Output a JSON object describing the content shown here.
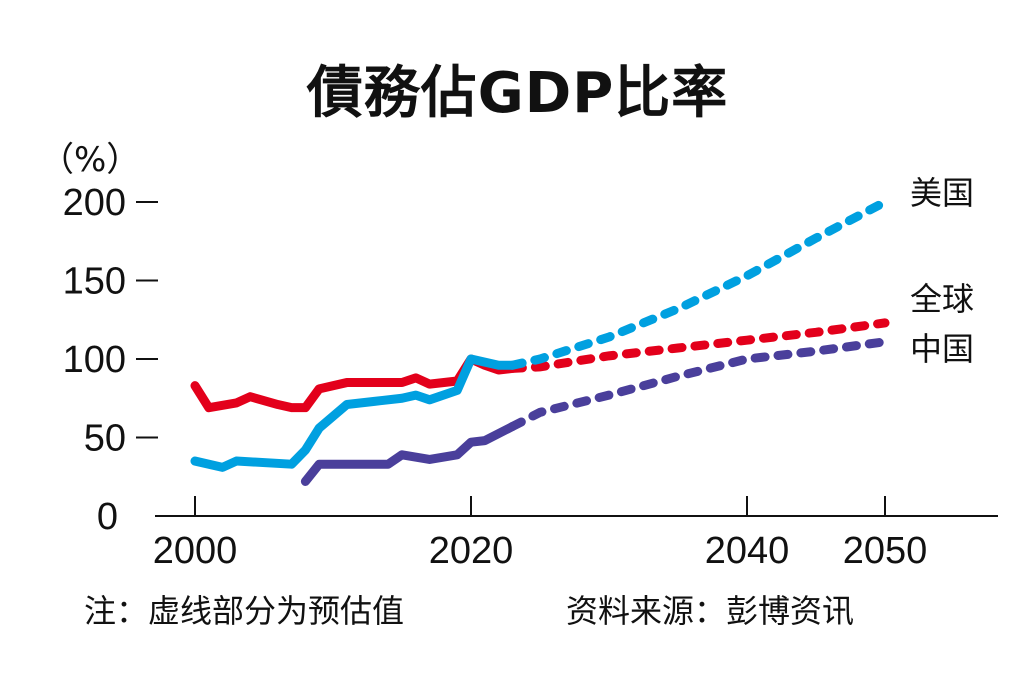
{
  "chart_data": {
    "type": "line",
    "title": "債務佔GDP比率",
    "ylabel": "（%）",
    "xlabel": "",
    "xlim": [
      1997,
      2058
    ],
    "ylim": [
      0,
      200
    ],
    "x_ticks": [
      2000,
      2020,
      2040,
      2050
    ],
    "y_ticks": [
      0,
      50,
      100,
      150,
      200
    ],
    "grid": false,
    "series": [
      {
        "name": "全球",
        "color": "#e3001b",
        "actual": [
          [
            2000,
            83
          ],
          [
            2001,
            69
          ],
          [
            2003,
            72
          ],
          [
            2004,
            76
          ],
          [
            2006,
            71
          ],
          [
            2007,
            69
          ],
          [
            2008,
            69
          ],
          [
            2009,
            81
          ],
          [
            2011,
            85
          ],
          [
            2015,
            85
          ],
          [
            2016,
            88
          ],
          [
            2017,
            84
          ],
          [
            2019,
            86
          ],
          [
            2020,
            100
          ],
          [
            2021,
            96
          ],
          [
            2022,
            93
          ],
          [
            2023,
            94
          ]
        ],
        "projected": [
          [
            2023,
            94
          ],
          [
            2025,
            95
          ],
          [
            2030,
            102
          ],
          [
            2035,
            107
          ],
          [
            2040,
            112
          ],
          [
            2045,
            117
          ],
          [
            2050,
            123
          ]
        ]
      },
      {
        "name": "美国",
        "color": "#00a0e0",
        "actual": [
          [
            2000,
            35
          ],
          [
            2002,
            31
          ],
          [
            2003,
            35
          ],
          [
            2007,
            33
          ],
          [
            2008,
            42
          ],
          [
            2009,
            56
          ],
          [
            2011,
            71
          ],
          [
            2013,
            73
          ],
          [
            2015,
            75
          ],
          [
            2016,
            77
          ],
          [
            2017,
            74
          ],
          [
            2019,
            80
          ],
          [
            2020,
            100
          ],
          [
            2022,
            96
          ],
          [
            2023,
            96
          ]
        ],
        "projected": [
          [
            2023,
            96
          ],
          [
            2025,
            100
          ],
          [
            2030,
            114
          ],
          [
            2035,
            132
          ],
          [
            2040,
            153
          ],
          [
            2045,
            177
          ],
          [
            2050,
            200
          ]
        ]
      },
      {
        "name": "中国",
        "color": "#4a3f9b",
        "actual": [
          [
            2008,
            22
          ],
          [
            2009,
            33
          ],
          [
            2014,
            33
          ],
          [
            2015,
            39
          ],
          [
            2017,
            36
          ],
          [
            2019,
            39
          ],
          [
            2020,
            47
          ],
          [
            2021,
            48
          ],
          [
            2023,
            57
          ]
        ],
        "projected": [
          [
            2023,
            57
          ],
          [
            2025,
            66
          ],
          [
            2030,
            77
          ],
          [
            2035,
            89
          ],
          [
            2040,
            100
          ],
          [
            2045,
            105
          ],
          [
            2050,
            111
          ]
        ]
      }
    ]
  },
  "note": "注：虚线部分为预估值",
  "source": "资料来源：彭博资讯"
}
